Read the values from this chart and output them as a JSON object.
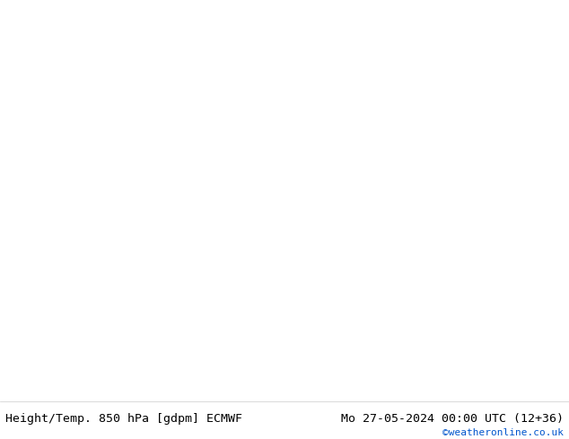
{
  "title_left": "Height/Temp. 850 hPa [gdpm] ECMWF",
  "title_right": "Mo 27-05-2024 00:00 UTC (12+36)",
  "copyright": "©weatheronline.co.uk",
  "land_color": "#c8f0a0",
  "sea_color": "#d8d8d8",
  "border_color": "#a0a0a0",
  "footer_bg": "#ffffff",
  "footer_text_color": "#000000",
  "copyright_color": "#0055cc",
  "figsize": [
    6.34,
    4.9
  ],
  "dpi": 100,
  "extent": [
    -15,
    55,
    25,
    65
  ],
  "orange_color": "#ff9900",
  "red_color": "#ff2200",
  "magenta_color": "#ff00aa",
  "green_color": "#88cc00",
  "black_lw": 2.8,
  "orange_lw": 1.8,
  "red_lw": 1.8,
  "magenta_lw": 1.8,
  "green_lw": 1.6
}
